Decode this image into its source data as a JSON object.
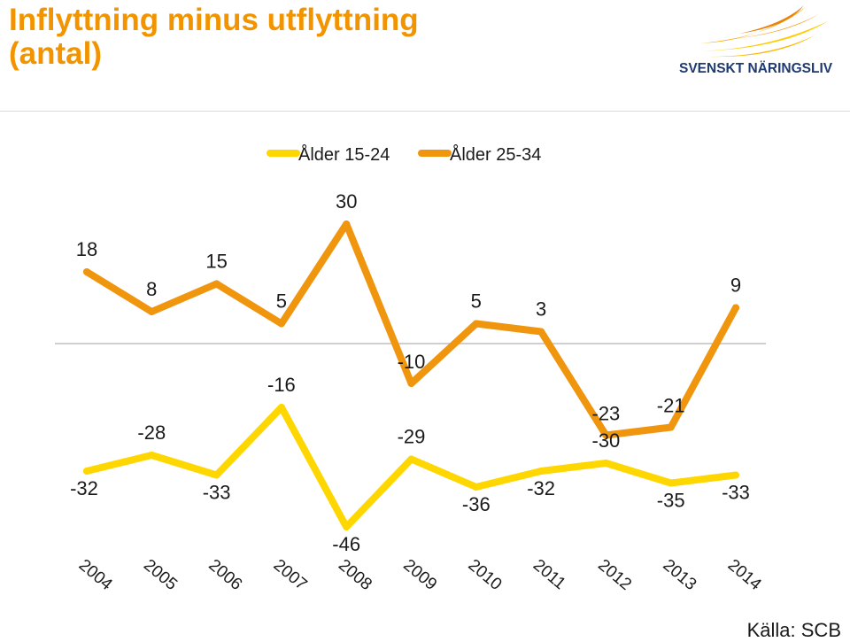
{
  "header": {
    "title_line1": "Inflyttning minus utflyttning",
    "title_line2": "(antal)",
    "logo_text": "SVENSKT NÄRINGSLIV"
  },
  "footer": {
    "source": "Källa: SCB"
  },
  "colors": {
    "title": "#f29400",
    "series_15_24": "#ffd700",
    "series_25_34": "#f0950e",
    "logo_text": "#1f3a6e",
    "zero_line": "#bfbfbf"
  },
  "chart_data": {
    "type": "line",
    "categories": [
      "2004",
      "2005",
      "2006",
      "2007",
      "2008",
      "2009",
      "2010",
      "2011",
      "2012",
      "2013",
      "2014"
    ],
    "series": [
      {
        "name": "Ålder 15-24",
        "values": [
          -32,
          -28,
          -33,
          -16,
          -46,
          -29,
          -36,
          -32,
          -30,
          -35,
          -33
        ]
      },
      {
        "name": "Ålder 25-34",
        "values": [
          18,
          8,
          15,
          5,
          30,
          -10,
          5,
          3,
          -23,
          -21,
          9
        ]
      }
    ],
    "legend_position": "top-center",
    "data_labels": true,
    "grid": false,
    "title": "",
    "xlabel": "",
    "ylabel": ""
  }
}
